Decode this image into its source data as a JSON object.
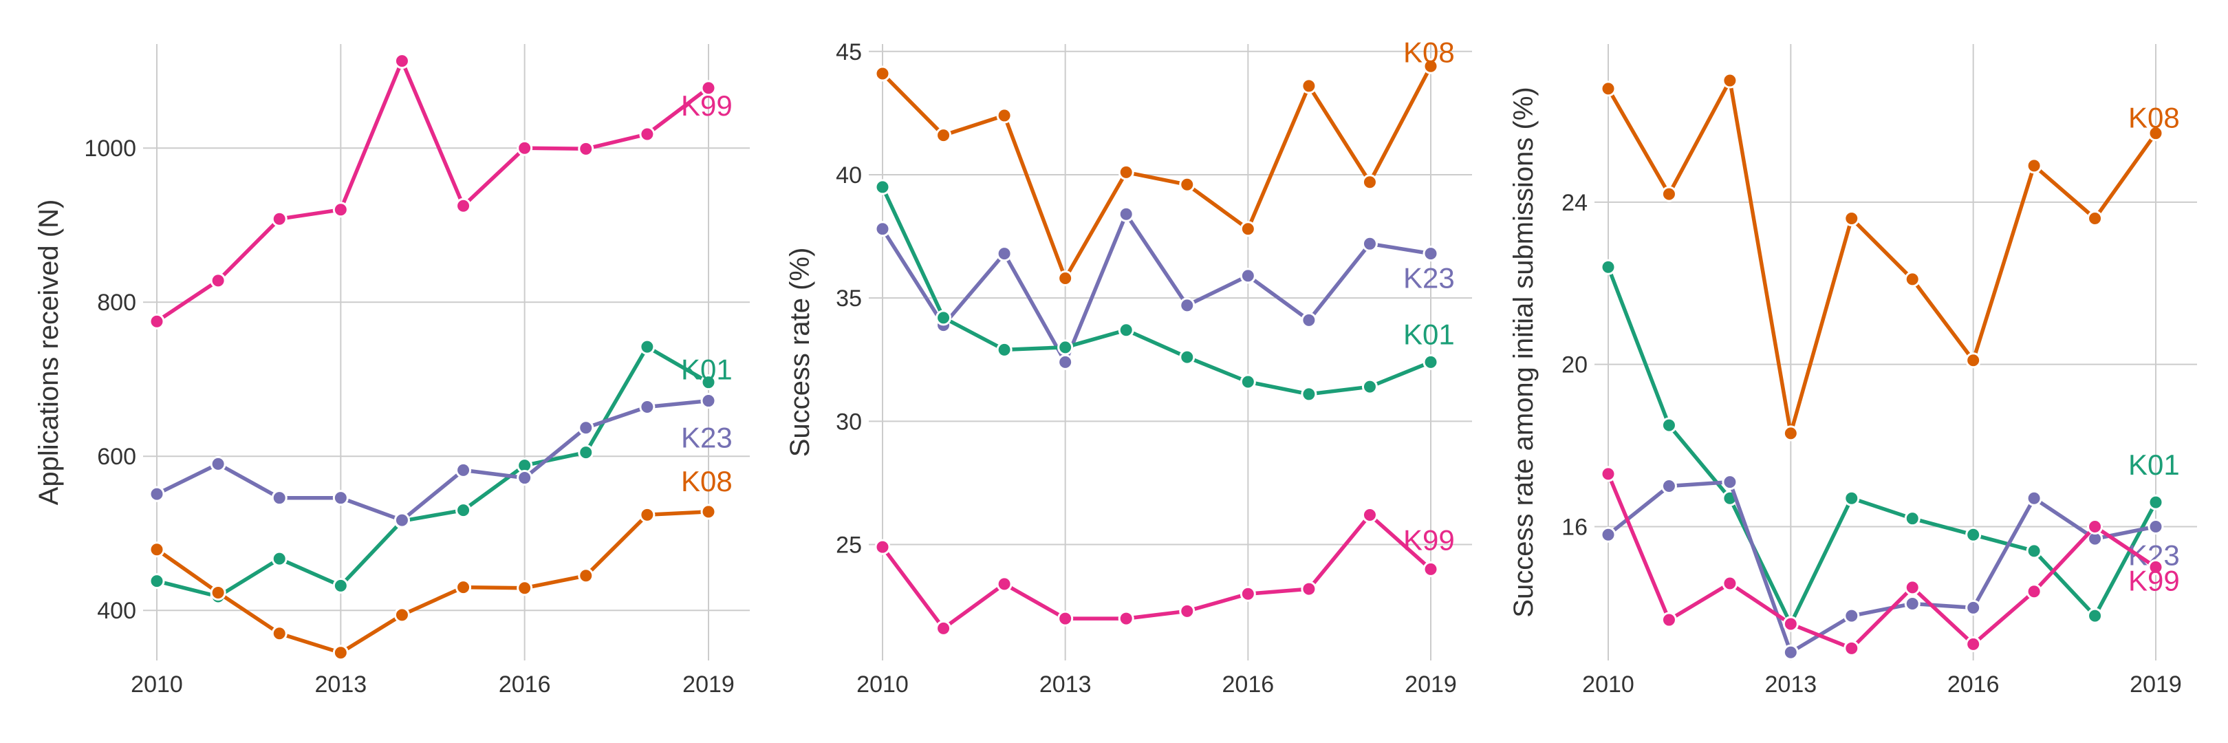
{
  "chart_data": [
    {
      "type": "line",
      "ylabel": "Applications received (N)",
      "xlim": [
        2010,
        2019
      ],
      "ylim": [
        335,
        1135
      ],
      "x_ticks": [
        2010,
        2013,
        2016,
        2019
      ],
      "y_ticks": [
        400,
        600,
        800,
        1000
      ],
      "grid": true,
      "series": [
        {
          "name": "K99",
          "color": "#e7298a",
          "x": [
            2010,
            2011,
            2012,
            2013,
            2014,
            2015,
            2016,
            2017,
            2018,
            2019
          ],
          "y": [
            775,
            828,
            908,
            920,
            1113,
            925,
            1000,
            999,
            1018,
            1078
          ]
        },
        {
          "name": "K01",
          "color": "#1b9e77",
          "x": [
            2010,
            2011,
            2012,
            2013,
            2014,
            2015,
            2016,
            2017,
            2018,
            2019
          ],
          "y": [
            438,
            418,
            467,
            432,
            516,
            530,
            588,
            605,
            742,
            696
          ]
        },
        {
          "name": "K23",
          "color": "#7570b3",
          "x": [
            2010,
            2011,
            2012,
            2013,
            2014,
            2015,
            2016,
            2017,
            2018,
            2019
          ],
          "y": [
            551,
            590,
            546,
            546,
            517,
            582,
            572,
            637,
            664,
            672
          ]
        },
        {
          "name": "K08",
          "color": "#d95f02",
          "x": [
            2010,
            2011,
            2012,
            2013,
            2014,
            2015,
            2016,
            2017,
            2018,
            2019
          ],
          "y": [
            479,
            423,
            370,
            345,
            394,
            430,
            429,
            445,
            524,
            528
          ]
        }
      ]
    },
    {
      "type": "line",
      "ylabel": "Success rate (%)",
      "xlim": [
        2010,
        2019
      ],
      "ylim": [
        20.3,
        45.3
      ],
      "x_ticks": [
        2010,
        2013,
        2016,
        2019
      ],
      "y_ticks": [
        25,
        30,
        35,
        40,
        45
      ],
      "grid": true,
      "series": [
        {
          "name": "K08",
          "color": "#d95f02",
          "x": [
            2010,
            2011,
            2012,
            2013,
            2014,
            2015,
            2016,
            2017,
            2018,
            2019
          ],
          "y": [
            44.1,
            41.6,
            42.4,
            35.8,
            40.1,
            39.6,
            37.8,
            43.6,
            39.7,
            44.4
          ]
        },
        {
          "name": "K23",
          "color": "#7570b3",
          "x": [
            2010,
            2011,
            2012,
            2013,
            2014,
            2015,
            2016,
            2017,
            2018,
            2019
          ],
          "y": [
            37.8,
            33.9,
            36.8,
            32.4,
            38.4,
            34.7,
            35.9,
            34.1,
            37.2,
            36.8
          ]
        },
        {
          "name": "K01",
          "color": "#1b9e77",
          "x": [
            2010,
            2011,
            2012,
            2013,
            2014,
            2015,
            2016,
            2017,
            2018,
            2019
          ],
          "y": [
            39.5,
            34.2,
            32.9,
            33.0,
            33.7,
            32.6,
            31.6,
            31.1,
            31.4,
            32.4
          ]
        },
        {
          "name": "K99",
          "color": "#e7298a",
          "x": [
            2010,
            2011,
            2012,
            2013,
            2014,
            2015,
            2016,
            2017,
            2018,
            2019
          ],
          "y": [
            24.9,
            21.6,
            23.4,
            22.0,
            22.0,
            22.3,
            23.0,
            23.2,
            26.2,
            24.0
          ]
        }
      ]
    },
    {
      "type": "line",
      "ylabel": "Success rate among initial submissions (%)",
      "xlim": [
        2010,
        2019
      ],
      "ylim": [
        12.7,
        27.9
      ],
      "x_ticks": [
        2010,
        2013,
        2016,
        2019
      ],
      "y_ticks": [
        16,
        20,
        24
      ],
      "grid": true,
      "series": [
        {
          "name": "K08",
          "color": "#d95f02",
          "x": [
            2010,
            2011,
            2012,
            2013,
            2014,
            2015,
            2016,
            2017,
            2018,
            2019
          ],
          "y": [
            26.8,
            24.2,
            27.0,
            18.3,
            23.6,
            22.1,
            20.1,
            24.9,
            23.6,
            25.7
          ]
        },
        {
          "name": "K01",
          "color": "#1b9e77",
          "x": [
            2010,
            2011,
            2012,
            2013,
            2014,
            2015,
            2016,
            2017,
            2018,
            2019
          ],
          "y": [
            22.4,
            18.5,
            16.7,
            13.6,
            16.7,
            16.2,
            15.8,
            15.4,
            13.8,
            16.6
          ]
        },
        {
          "name": "K23",
          "color": "#7570b3",
          "x": [
            2010,
            2011,
            2012,
            2013,
            2014,
            2015,
            2016,
            2017,
            2018,
            2019
          ],
          "y": [
            15.8,
            17.0,
            17.1,
            12.9,
            13.8,
            14.1,
            14.0,
            16.7,
            15.7,
            16.0
          ]
        },
        {
          "name": "K99",
          "color": "#e7298a",
          "x": [
            2010,
            2011,
            2012,
            2013,
            2014,
            2015,
            2016,
            2017,
            2018,
            2019
          ],
          "y": [
            17.3,
            13.7,
            14.6,
            13.6,
            13.0,
            14.5,
            13.1,
            14.4,
            16.0,
            15.0
          ]
        }
      ]
    }
  ]
}
